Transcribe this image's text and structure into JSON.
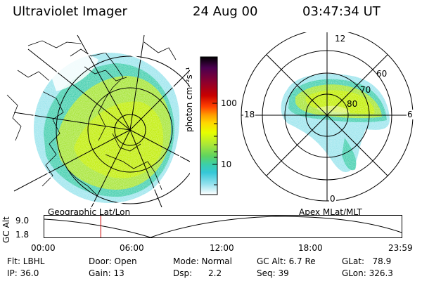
{
  "header": {
    "title": "Ultraviolet Imager",
    "date": "24 Aug 00",
    "time": "03:47:34 UT"
  },
  "left_panel": {
    "caption": "Geographic Lat/Lon"
  },
  "right_panel": {
    "caption": "Apex MLat/MLT",
    "mlt_labels": [
      "12",
      "18",
      "6",
      "0"
    ],
    "mlat_labels": [
      "60",
      "70",
      "80"
    ]
  },
  "colorbar": {
    "unit_label": "photon cm⁻²s⁻¹",
    "ticks": [
      "100",
      "10"
    ],
    "colors": [
      "#000000",
      "#4b0050",
      "#8b0030",
      "#c80000",
      "#ff4000",
      "#ff9a00",
      "#ffd800",
      "#e6ff00",
      "#a8e63a",
      "#5fd35f",
      "#3ccfa8",
      "#35c8d8",
      "#8fe0ec",
      "#ffffff"
    ]
  },
  "altitude_plot": {
    "y_label": "GC Alt",
    "y_ticks": [
      "9.0",
      "1.8"
    ],
    "x_ticks": [
      "00:00",
      "06:00",
      "12:00",
      "18:00",
      "23:59"
    ],
    "current_time_fraction": 0.158,
    "marker_color": "#cc0000"
  },
  "info": {
    "filter": "Flt: LBHL",
    "ip": "IP: 36.0",
    "door": "Door: Open",
    "gain": "Gain: 13",
    "mode": "Mode: Normal",
    "dsp": "Dsp:      2.2",
    "gc_alt": "GC Alt: 6.7 Re",
    "seq": "Seq: 39",
    "glat": "GLat:   78.9",
    "glon": "GLon: 326.3"
  },
  "palette": {
    "aurora_main": "#a8e63a",
    "aurora_bright": "#c8f000",
    "aurora_edge": "#48d0b0",
    "aurora_low": "#9fe6ee"
  }
}
